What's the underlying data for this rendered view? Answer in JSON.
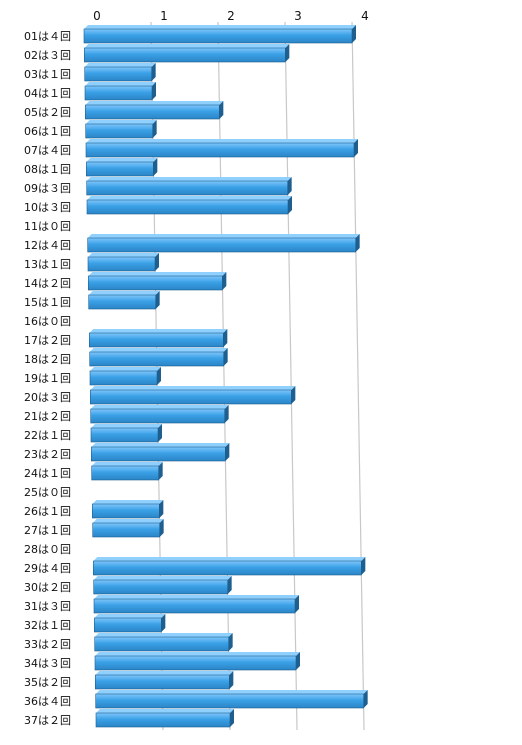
{
  "chart_data": {
    "type": "bar",
    "orientation": "horizontal",
    "categories": [
      "01は４回",
      "02は３回",
      "03は１回",
      "04は１回",
      "05は２回",
      "06は１回",
      "07は４回",
      "08は１回",
      "09は３回",
      "10は３回",
      "11は０回",
      "12は４回",
      "13は１回",
      "14は２回",
      "15は１回",
      "16は０回",
      "17は２回",
      "18は２回",
      "19は１回",
      "20は３回",
      "21は２回",
      "22は１回",
      "23は２回",
      "24は１回",
      "25は０回",
      "26は１回",
      "27は１回",
      "28は０回",
      "29は４回",
      "30は２回",
      "31は３回",
      "32は１回",
      "33は２回",
      "34は３回",
      "35は２回",
      "36は４回",
      "37は２回"
    ],
    "values": [
      4,
      3,
      1,
      1,
      2,
      1,
      4,
      1,
      3,
      3,
      0,
      4,
      1,
      2,
      1,
      0,
      2,
      2,
      1,
      3,
      2,
      1,
      2,
      1,
      0,
      1,
      1,
      0,
      4,
      2,
      3,
      1,
      2,
      3,
      2,
      4,
      2
    ],
    "xticks": [
      "0",
      "1",
      "2",
      "3",
      "4"
    ],
    "xlim": [
      0,
      4
    ],
    "title": "",
    "xlabel": "",
    "ylabel": "",
    "grid": true,
    "colors": {
      "bar_face": "#3aa0e6",
      "bar_top": "#8fd0ff",
      "bar_side": "#1f5f8f",
      "grid": "#c8c8c8"
    }
  }
}
